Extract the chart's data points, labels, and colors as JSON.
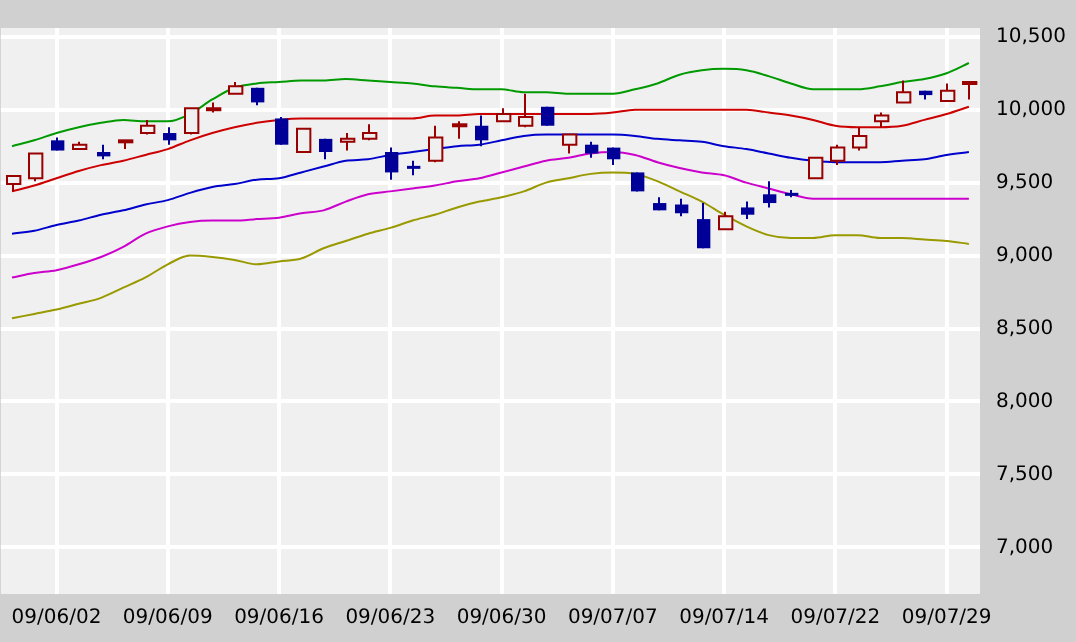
{
  "chart_data": {
    "type": "candlestick",
    "grid": true,
    "legend": false,
    "categories": [
      null,
      null,
      "09/06/02",
      null,
      null,
      null,
      null,
      "09/06/09",
      null,
      null,
      null,
      null,
      "09/06/16",
      null,
      null,
      null,
      null,
      "09/06/23",
      null,
      null,
      null,
      null,
      "09/06/30",
      null,
      null,
      null,
      null,
      "09/07/07",
      null,
      null,
      null,
      null,
      "09/07/14",
      null,
      null,
      null,
      null,
      "09/07/22",
      null,
      null,
      null,
      null,
      "09/07/29",
      null
    ],
    "ylim": [
      6680,
      10560
    ],
    "yticks": [
      {
        "value": 7000,
        "label": "7,000"
      },
      {
        "value": 7500,
        "label": "7,500"
      },
      {
        "value": 8000,
        "label": "8,000"
      },
      {
        "value": 8500,
        "label": "8,500"
      },
      {
        "value": 9000,
        "label": "9,000"
      },
      {
        "value": 9500,
        "label": "9,500"
      },
      {
        "value": 10000,
        "label": "10,000"
      },
      {
        "value": 10500,
        "label": "10,500"
      }
    ],
    "ohlc": [
      [
        9490,
        9545,
        9440,
        9545
      ],
      [
        9530,
        9700,
        9510,
        9700
      ],
      [
        9790,
        9810,
        9720,
        9720
      ],
      [
        9730,
        9780,
        9730,
        9760
      ],
      [
        9710,
        9760,
        9660,
        9680
      ],
      [
        9780,
        9790,
        9730,
        9790
      ],
      [
        9840,
        9930,
        9830,
        9890
      ],
      [
        9840,
        9880,
        9760,
        9790
      ],
      [
        9840,
        10010,
        9830,
        10010
      ],
      [
        10000,
        10050,
        9980,
        10010
      ],
      [
        10110,
        10190,
        10110,
        10160
      ],
      [
        10150,
        10150,
        10030,
        10050
      ],
      [
        9940,
        9950,
        9760,
        9760
      ],
      [
        9710,
        9870,
        9710,
        9870
      ],
      [
        9800,
        9800,
        9660,
        9710
      ],
      [
        9780,
        9840,
        9720,
        9800
      ],
      [
        9800,
        9900,
        9790,
        9840
      ],
      [
        9710,
        9740,
        9520,
        9570
      ],
      [
        9615,
        9650,
        9550,
        9605
      ],
      [
        9650,
        9890,
        9640,
        9810
      ],
      [
        9890,
        9920,
        9800,
        9900
      ],
      [
        9890,
        9960,
        9750,
        9790
      ],
      [
        9920,
        10010,
        9920,
        9970
      ],
      [
        9890,
        10110,
        9880,
        9950
      ],
      [
        10020,
        10020,
        9890,
        9890
      ],
      [
        9760,
        9830,
        9700,
        9830
      ],
      [
        9760,
        9780,
        9670,
        9700
      ],
      [
        9740,
        9740,
        9620,
        9660
      ],
      [
        9570,
        9570,
        9440,
        9440
      ],
      [
        9360,
        9400,
        9310,
        9310
      ],
      [
        9350,
        9390,
        9270,
        9290
      ],
      [
        9250,
        9360,
        9050,
        9050
      ],
      [
        9180,
        9300,
        9180,
        9270
      ],
      [
        9330,
        9370,
        9250,
        9280
      ],
      [
        9420,
        9510,
        9330,
        9360
      ],
      [
        9430,
        9450,
        9400,
        9410
      ],
      [
        9530,
        9670,
        9530,
        9670
      ],
      [
        9650,
        9760,
        9620,
        9740
      ],
      [
        9740,
        9880,
        9720,
        9820
      ],
      [
        9920,
        9980,
        9880,
        9960
      ],
      [
        10050,
        10200,
        10050,
        10120
      ],
      [
        10130,
        10130,
        10070,
        10100
      ],
      [
        10060,
        10180,
        10060,
        10130
      ],
      [
        10185,
        10190,
        10070,
        10190
      ]
    ],
    "series": [
      {
        "type": "line",
        "color": "#009900",
        "values": [
          9750,
          9790,
          9840,
          9880,
          9910,
          9930,
          9920,
          9920,
          9970,
          10070,
          10150,
          10180,
          10190,
          10200,
          10200,
          10210,
          10200,
          10190,
          10180,
          10160,
          10150,
          10140,
          10140,
          10120,
          10120,
          10110,
          10110,
          10110,
          10140,
          10180,
          10240,
          10270,
          10280,
          10270,
          10230,
          10180,
          10140,
          10140,
          10140,
          10160,
          10190,
          10210,
          10250,
          10320
        ]
      },
      {
        "type": "line",
        "color": "#cc0000",
        "values": [
          9440,
          9480,
          9530,
          9580,
          9620,
          9650,
          9690,
          9730,
          9790,
          9840,
          9880,
          9910,
          9930,
          9940,
          9940,
          9940,
          9940,
          9940,
          9940,
          9960,
          9960,
          9970,
          9970,
          9970,
          9970,
          9970,
          9970,
          9980,
          10000,
          10000,
          10000,
          10000,
          10000,
          10000,
          9980,
          9960,
          9930,
          9890,
          9880,
          9880,
          9890,
          9930,
          9970,
          10020
        ]
      },
      {
        "type": "line",
        "color": "#0000cc",
        "values": [
          9150,
          9170,
          9210,
          9240,
          9280,
          9310,
          9350,
          9380,
          9430,
          9470,
          9490,
          9520,
          9530,
          9570,
          9610,
          9650,
          9660,
          9690,
          9710,
          9730,
          9750,
          9760,
          9790,
          9820,
          9830,
          9830,
          9830,
          9830,
          9820,
          9800,
          9790,
          9780,
          9750,
          9730,
          9700,
          9670,
          9650,
          9640,
          9640,
          9640,
          9650,
          9660,
          9690,
          9710
        ]
      },
      {
        "type": "line",
        "color": "#cc00cc",
        "values": [
          8850,
          8880,
          8900,
          8940,
          8990,
          9060,
          9150,
          9200,
          9230,
          9240,
          9240,
          9250,
          9260,
          9290,
          9310,
          9370,
          9420,
          9440,
          9460,
          9480,
          9510,
          9530,
          9570,
          9610,
          9650,
          9670,
          9700,
          9710,
          9690,
          9640,
          9600,
          9570,
          9550,
          9500,
          9460,
          9420,
          9390,
          9390,
          9390,
          9390,
          9390,
          9390,
          9390,
          9390
        ]
      },
      {
        "type": "line",
        "color": "#999900",
        "values": [
          8570,
          8600,
          8630,
          8670,
          8710,
          8780,
          8850,
          8940,
          9000,
          8990,
          8970,
          8940,
          8960,
          8980,
          9050,
          9100,
          9150,
          9190,
          9240,
          9280,
          9330,
          9370,
          9400,
          9440,
          9500,
          9530,
          9560,
          9570,
          9560,
          9510,
          9440,
          9370,
          9280,
          9200,
          9140,
          9120,
          9120,
          9140,
          9140,
          9120,
          9120,
          9110,
          9100,
          9080
        ]
      }
    ]
  }
}
